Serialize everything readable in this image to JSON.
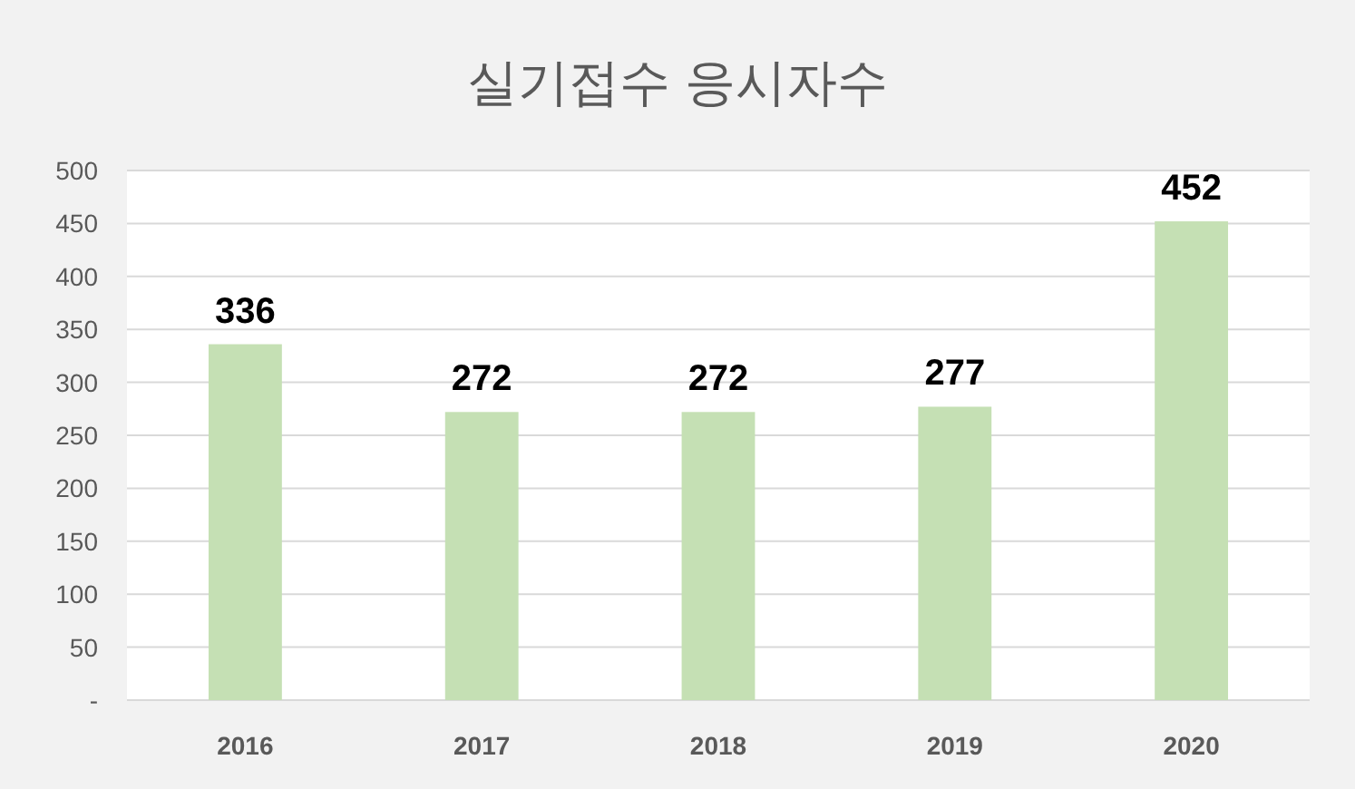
{
  "chart_data": {
    "type": "bar",
    "title": "실기접수 응시자수",
    "categories": [
      "2016",
      "2017",
      "2018",
      "2019",
      "2020"
    ],
    "values": [
      336,
      272,
      272,
      277,
      452
    ],
    "color": "#c5e0b4",
    "ylim": [
      0,
      500
    ],
    "yticks": [
      {
        "value": 0,
        "label": "-"
      },
      50,
      100,
      150,
      200,
      250,
      300,
      350,
      400,
      450,
      500
    ],
    "grid": "y",
    "data_labels": true
  }
}
